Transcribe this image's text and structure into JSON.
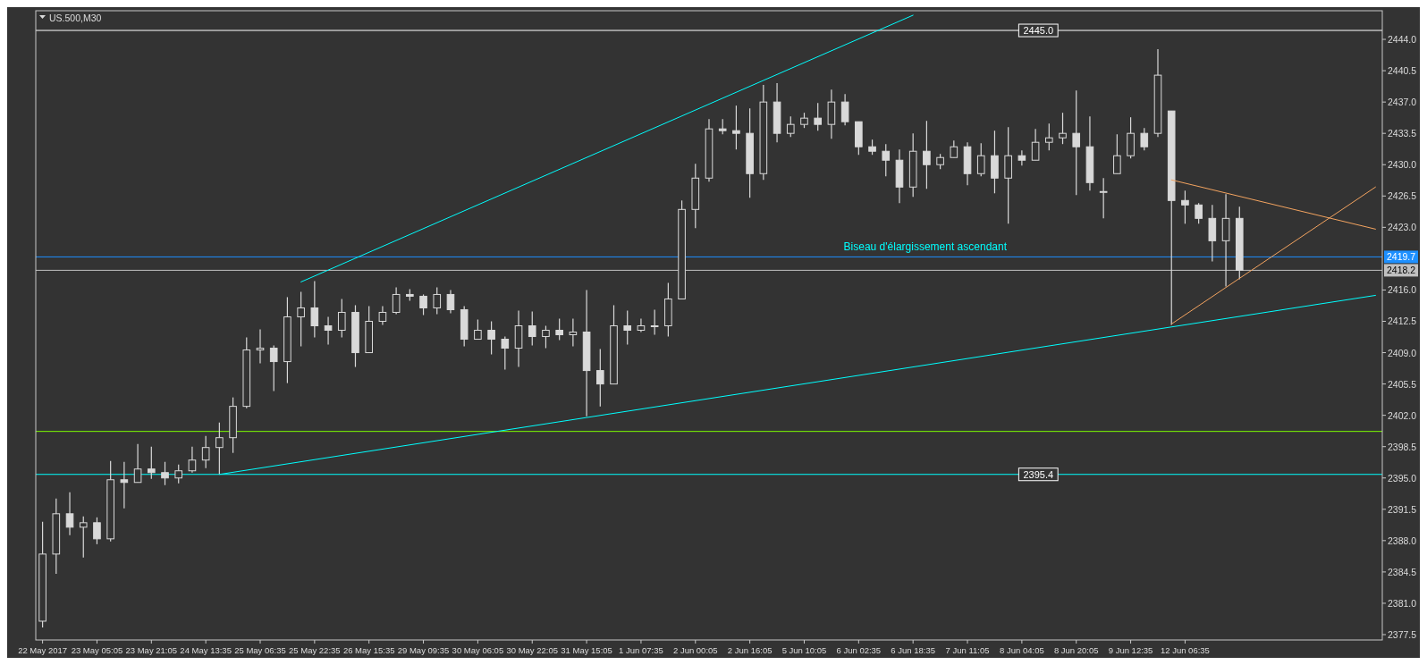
{
  "chart_data": {
    "type": "candlestick",
    "title": "US.500,M30",
    "color": "#d9d9d9",
    "categories": [
      "22 May 2017",
      null,
      null,
      null,
      "23 May 05:05",
      null,
      null,
      null,
      "23 May 21:05",
      null,
      null,
      null,
      "24 May 13:35",
      null,
      null,
      null,
      "25 May 06:35",
      null,
      null,
      null,
      "25 May 22:35",
      null,
      null,
      null,
      "26 May 15:35",
      null,
      null,
      null,
      "29 May 09:35",
      null,
      null,
      null,
      "30 May 06:05",
      null,
      null,
      null,
      "30 May 22:05",
      null,
      null,
      null,
      "31 May 15:05",
      null,
      null,
      null,
      "1 Jun 07:35",
      null,
      null,
      null,
      "2 Jun 00:05",
      null,
      null,
      null,
      "2 Jun 16:05",
      null,
      null,
      null,
      "5 Jun 10:05",
      null,
      null,
      null,
      "6 Jun 02:35",
      null,
      null,
      null,
      "6 Jun 18:35",
      null,
      null,
      null,
      "7 Jun 11:05",
      null,
      null,
      null,
      "8 Jun 04:05",
      null,
      null,
      null,
      "8 Jun 20:05",
      null,
      null,
      null,
      "9 Jun 12:35",
      null,
      null,
      null,
      "12 Jun 06:35",
      null,
      null,
      null,
      null,
      null,
      null,
      null,
      null,
      null,
      null,
      null,
      null,
      null,
      null
    ],
    "ohlc": [
      [
        2379.0,
        2390.1,
        2378.3,
        2386.5
      ],
      [
        2386.5,
        2392.7,
        2384.3,
        2391.0
      ],
      [
        2391.0,
        2393.4,
        2388.6,
        2389.5
      ],
      [
        2389.5,
        2390.7,
        2386.1,
        2390.0
      ],
      [
        2390.0,
        2390.6,
        2387.6,
        2388.2
      ],
      [
        2388.2,
        2396.9,
        2387.9,
        2394.8
      ],
      [
        2394.8,
        2396.8,
        2391.6,
        2394.5
      ],
      [
        2394.5,
        2398.8,
        2394.5,
        2396.0
      ],
      [
        2396.0,
        2398.5,
        2394.9,
        2395.6
      ],
      [
        2395.6,
        2396.8,
        2394.2,
        2395.0
      ],
      [
        2395.0,
        2396.5,
        2394.4,
        2395.8
      ],
      [
        2395.8,
        2398.5,
        2395.6,
        2397.0
      ],
      [
        2397.0,
        2399.7,
        2396.1,
        2398.4
      ],
      [
        2398.4,
        2401.2,
        2395.4,
        2399.5
      ],
      [
        2399.5,
        2404.0,
        2397.8,
        2403.0
      ],
      [
        2403.0,
        2410.7,
        2402.8,
        2409.3
      ],
      [
        2409.3,
        2411.6,
        2407.8,
        2409.5
      ],
      [
        2409.5,
        2409.8,
        2404.7,
        2408.0
      ],
      [
        2408.0,
        2415.2,
        2405.6,
        2413.0
      ],
      [
        2413.0,
        2415.8,
        2409.7,
        2414.0
      ],
      [
        2414.0,
        2417.0,
        2410.7,
        2412.0
      ],
      [
        2412.0,
        2413.0,
        2409.9,
        2411.5
      ],
      [
        2411.5,
        2415.0,
        2410.7,
        2413.5
      ],
      [
        2413.5,
        2414.3,
        2407.4,
        2409.0
      ],
      [
        2409.0,
        2414.2,
        2409.0,
        2412.5
      ],
      [
        2412.5,
        2414.2,
        2412.1,
        2413.5
      ],
      [
        2413.5,
        2416.3,
        2413.3,
        2415.5
      ],
      [
        2415.5,
        2416.1,
        2414.8,
        2415.3
      ],
      [
        2415.3,
        2415.5,
        2413.2,
        2414.0
      ],
      [
        2414.0,
        2416.3,
        2413.3,
        2415.5
      ],
      [
        2415.5,
        2416.0,
        2413.4,
        2413.8
      ],
      [
        2413.8,
        2414.2,
        2409.7,
        2410.5
      ],
      [
        2410.5,
        2412.7,
        2410.5,
        2411.5
      ],
      [
        2411.5,
        2412.5,
        2408.8,
        2410.5
      ],
      [
        2410.5,
        2410.8,
        2407.1,
        2409.5
      ],
      [
        2409.5,
        2413.7,
        2407.4,
        2412.0
      ],
      [
        2412.0,
        2413.6,
        2409.8,
        2410.8
      ],
      [
        2410.8,
        2412.0,
        2409.5,
        2411.5
      ],
      [
        2411.5,
        2412.8,
        2410.4,
        2411.0
      ],
      [
        2411.0,
        2412.8,
        2409.7,
        2411.3
      ],
      [
        2411.3,
        2416.0,
        2401.9,
        2407.0
      ],
      [
        2407.0,
        2409.4,
        2403.0,
        2405.5
      ],
      [
        2405.5,
        2414.3,
        2405.5,
        2412.0
      ],
      [
        2412.0,
        2413.7,
        2409.9,
        2411.5
      ],
      [
        2411.5,
        2412.8,
        2411.3,
        2412.0
      ],
      [
        2412.0,
        2413.8,
        2411.0,
        2412.0
      ],
      [
        2412.0,
        2416.8,
        2410.8,
        2415.0
      ],
      [
        2415.0,
        2426.0,
        2415.0,
        2425.0
      ],
      [
        2425.0,
        2430.1,
        2422.9,
        2428.5
      ],
      [
        2428.5,
        2435.1,
        2428.1,
        2434.0
      ],
      [
        2434.0,
        2435.1,
        2433.4,
        2433.8
      ],
      [
        2433.8,
        2436.6,
        2431.7,
        2433.5
      ],
      [
        2433.5,
        2436.3,
        2426.3,
        2429.0
      ],
      [
        2429.0,
        2438.9,
        2428.3,
        2437.0
      ],
      [
        2437.0,
        2439.1,
        2432.5,
        2433.5
      ],
      [
        2433.5,
        2435.4,
        2433.1,
        2434.5
      ],
      [
        2434.5,
        2435.8,
        2434.1,
        2435.2
      ],
      [
        2435.2,
        2436.9,
        2433.8,
        2434.5
      ],
      [
        2434.5,
        2438.4,
        2432.9,
        2437.0
      ],
      [
        2437.0,
        2437.9,
        2434.4,
        2434.8
      ],
      [
        2434.8,
        2434.8,
        2431.1,
        2432.0
      ],
      [
        2432.0,
        2432.8,
        2431.1,
        2431.5
      ],
      [
        2431.5,
        2432.3,
        2428.7,
        2430.5
      ],
      [
        2430.5,
        2431.7,
        2425.7,
        2427.5
      ],
      [
        2427.5,
        2433.5,
        2426.4,
        2431.5
      ],
      [
        2431.5,
        2434.9,
        2427.3,
        2430.0
      ],
      [
        2430.0,
        2431.2,
        2429.5,
        2430.8
      ],
      [
        2430.8,
        2432.7,
        2430.8,
        2432.0
      ],
      [
        2432.0,
        2432.5,
        2427.7,
        2429.0
      ],
      [
        2429.0,
        2432.4,
        2428.7,
        2431.0
      ],
      [
        2431.0,
        2433.8,
        2426.8,
        2428.5
      ],
      [
        2428.5,
        2434.2,
        2423.4,
        2431.0
      ],
      [
        2431.0,
        2431.6,
        2429.9,
        2430.5
      ],
      [
        2430.5,
        2434.0,
        2430.5,
        2432.5
      ],
      [
        2432.5,
        2434.6,
        2431.6,
        2433.0
      ],
      [
        2433.0,
        2435.8,
        2432.3,
        2433.5
      ],
      [
        2433.5,
        2438.3,
        2426.6,
        2432.0
      ],
      [
        2432.0,
        2435.4,
        2427.1,
        2428.0
      ],
      [
        2427.0,
        2428.5,
        2424.0,
        2427.0
      ],
      [
        2429.0,
        2433.4,
        2429.0,
        2431.0
      ],
      [
        2431.0,
        2435.3,
        2430.7,
        2433.5
      ],
      [
        2433.5,
        2434.1,
        2431.6,
        2432.0
      ],
      [
        2433.5,
        2442.9,
        2433.1,
        2440.0
      ],
      [
        2436.0,
        2436.0,
        2412.1,
        2426.0
      ],
      [
        2426.0,
        2427.1,
        2423.4,
        2425.5
      ],
      [
        2425.5,
        2425.7,
        2423.4,
        2424.0
      ],
      [
        2424.0,
        2425.5,
        2419.2,
        2421.5
      ],
      [
        2421.5,
        2426.7,
        2416.4,
        2424.0
      ],
      [
        2424.0,
        2425.3,
        2417.2,
        2418.2
      ],
      null,
      null,
      null,
      null,
      null,
      null,
      null,
      null,
      null,
      null
    ],
    "series": [
      {
        "type": "line",
        "color": "#00ffff",
        "values": [
          null,
          null,
          null,
          null,
          null,
          null,
          null,
          null,
          null,
          null,
          null,
          null,
          null,
          null,
          null,
          null,
          null,
          null,
          null,
          2416.9,
          null,
          null,
          null,
          null,
          null,
          null,
          null,
          null,
          null,
          null,
          null,
          null,
          null,
          null,
          null,
          null,
          null,
          null,
          null,
          null,
          null,
          null,
          null,
          null,
          null,
          null,
          null,
          null,
          null,
          null,
          null,
          null,
          null,
          null,
          null,
          null,
          null,
          null,
          null,
          null,
          null,
          null,
          null,
          null,
          2446.7,
          null,
          null,
          null,
          null,
          null,
          null,
          null,
          null,
          null,
          null,
          null,
          null,
          null,
          null,
          null,
          null,
          null,
          null,
          null,
          null,
          null,
          null,
          null,
          null,
          null,
          null,
          null,
          null,
          null,
          null,
          null,
          null,
          null,
          null
        ]
      },
      {
        "type": "line",
        "color": "#00ffff",
        "values": [
          null,
          null,
          null,
          null,
          null,
          null,
          null,
          null,
          null,
          null,
          null,
          null,
          null,
          2395.4,
          null,
          null,
          null,
          null,
          null,
          null,
          null,
          null,
          null,
          null,
          null,
          null,
          null,
          null,
          null,
          null,
          null,
          null,
          null,
          null,
          null,
          null,
          null,
          null,
          null,
          null,
          null,
          null,
          null,
          null,
          null,
          null,
          null,
          null,
          null,
          null,
          null,
          null,
          null,
          null,
          null,
          null,
          null,
          null,
          null,
          null,
          null,
          null,
          null,
          null,
          null,
          null,
          null,
          null,
          null,
          null,
          null,
          null,
          null,
          null,
          null,
          null,
          null,
          null,
          null,
          null,
          null,
          null,
          null,
          null,
          null,
          null,
          null,
          null,
          null,
          null,
          null,
          null,
          null,
          null,
          null,
          null,
          null,
          null,
          2415.4
        ]
      },
      {
        "type": "line",
        "color": "#f4a460",
        "values": [
          null,
          null,
          null,
          null,
          null,
          null,
          null,
          null,
          null,
          null,
          null,
          null,
          null,
          null,
          null,
          null,
          null,
          null,
          null,
          null,
          null,
          null,
          null,
          null,
          null,
          null,
          null,
          null,
          null,
          null,
          null,
          null,
          null,
          null,
          null,
          null,
          null,
          null,
          null,
          null,
          null,
          null,
          null,
          null,
          null,
          null,
          null,
          null,
          null,
          null,
          null,
          null,
          null,
          null,
          null,
          null,
          null,
          null,
          null,
          null,
          null,
          null,
          null,
          null,
          null,
          null,
          null,
          null,
          null,
          null,
          null,
          null,
          null,
          null,
          null,
          null,
          null,
          null,
          null,
          null,
          null,
          null,
          null,
          2428.3,
          null,
          null,
          null,
          null,
          null,
          null,
          null,
          null,
          null,
          null,
          null,
          null,
          null,
          null,
          2422.8
        ]
      },
      {
        "type": "line",
        "color": "#f4a460",
        "values": [
          null,
          null,
          null,
          null,
          null,
          null,
          null,
          null,
          null,
          null,
          null,
          null,
          null,
          null,
          null,
          null,
          null,
          null,
          null,
          null,
          null,
          null,
          null,
          null,
          null,
          null,
          null,
          null,
          null,
          null,
          null,
          null,
          null,
          null,
          null,
          null,
          null,
          null,
          null,
          null,
          null,
          null,
          null,
          null,
          null,
          null,
          null,
          null,
          null,
          null,
          null,
          null,
          null,
          null,
          null,
          null,
          null,
          null,
          null,
          null,
          null,
          null,
          null,
          null,
          null,
          null,
          null,
          null,
          null,
          null,
          null,
          null,
          null,
          null,
          null,
          null,
          null,
          null,
          null,
          null,
          null,
          null,
          null,
          2412.2,
          null,
          null,
          null,
          null,
          null,
          null,
          null,
          null,
          null,
          null,
          null,
          null,
          null,
          null,
          2427.5
        ]
      }
    ],
    "ylim": [
      2376.9,
      2447.2
    ],
    "yticks": [
      2377.5,
      {
        "value": 2381,
        "label": "2381.0"
      },
      2384.5,
      {
        "value": 2388,
        "label": "2388.0"
      },
      2391.5,
      {
        "value": 2395,
        "label": "2395.0"
      },
      2398.5,
      {
        "value": 2402,
        "label": "2402.0"
      },
      2405.5,
      {
        "value": 2409,
        "label": "2409.0"
      },
      2412.5,
      {
        "value": 2416,
        "label": "2416.0"
      },
      {
        "value": 2423,
        "label": "2423.0"
      },
      2426.5,
      {
        "value": 2430,
        "label": "2430.0"
      },
      2433.5,
      {
        "value": 2437,
        "label": "2437.0"
      },
      2440.5,
      {
        "value": 2444,
        "label": "2444.0"
      }
    ],
    "ref_lines": [
      {
        "axis": "y",
        "value": 2445.0,
        "color": "#ffffff"
      },
      {
        "axis": "y",
        "value": 2395.4,
        "color": "#00ffff"
      },
      {
        "axis": "y",
        "value": 2400.2,
        "color": "#7cfc00"
      },
      {
        "axis": "y",
        "value": 2419.7,
        "label": "2419.7",
        "color": "#1e90ff"
      },
      {
        "axis": "y",
        "value": 2418.2,
        "label": "2418.2",
        "color": "#c0c0c0"
      }
    ],
    "annotations": [
      "Biseau d'élargissement ascendant",
      {
        "text": "2445.0",
        "y": 2445.0
      },
      {
        "text": "2395.4",
        "y": 2395.4
      }
    ]
  }
}
